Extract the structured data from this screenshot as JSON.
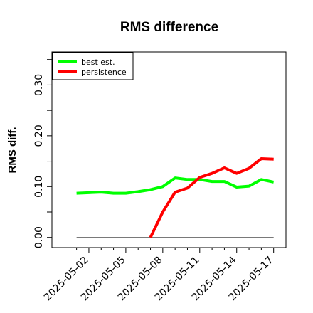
{
  "chart_data": {
    "type": "line",
    "title": "RMS difference",
    "xlabel": "",
    "ylabel": "RMS diff.",
    "x": [
      "2025-05-01",
      "2025-05-02",
      "2025-05-03",
      "2025-05-04",
      "2025-05-05",
      "2025-05-06",
      "2025-05-07",
      "2025-05-08",
      "2025-05-09",
      "2025-05-10",
      "2025-05-11",
      "2025-05-12",
      "2025-05-13",
      "2025-05-14",
      "2025-05-15",
      "2025-05-16",
      "2025-05-17"
    ],
    "xlim": [
      "2025-04-29",
      "2025-05-18"
    ],
    "ylim": [
      -0.02,
      0.365
    ],
    "x_ticks": [
      "2025-05-02",
      "2025-05-05",
      "2025-05-08",
      "2025-05-11",
      "2025-05-14",
      "2025-05-17"
    ],
    "y_ticks": [
      0.0,
      0.05,
      0.1,
      0.15,
      0.2,
      0.25,
      0.3,
      0.35
    ],
    "y_tick_labels": [
      "0.00",
      "",
      "0.10",
      "",
      "0.20",
      "",
      "0.30",
      ""
    ],
    "reference_line": 0.0,
    "legend_position": "top-left",
    "grid": false,
    "series": [
      {
        "name": "best est.",
        "color": "#00ff00",
        "values": [
          0.087,
          0.088,
          0.089,
          0.087,
          0.087,
          0.09,
          0.094,
          0.1,
          0.117,
          0.114,
          0.114,
          0.11,
          0.11,
          0.099,
          0.101,
          0.114,
          0.109
        ]
      },
      {
        "name": "persistence",
        "color": "#ff0000",
        "values": [
          null,
          null,
          null,
          null,
          null,
          null,
          0.0,
          0.05,
          0.089,
          0.097,
          0.118,
          0.126,
          0.137,
          0.126,
          0.136,
          0.155,
          0.154
        ]
      }
    ]
  }
}
